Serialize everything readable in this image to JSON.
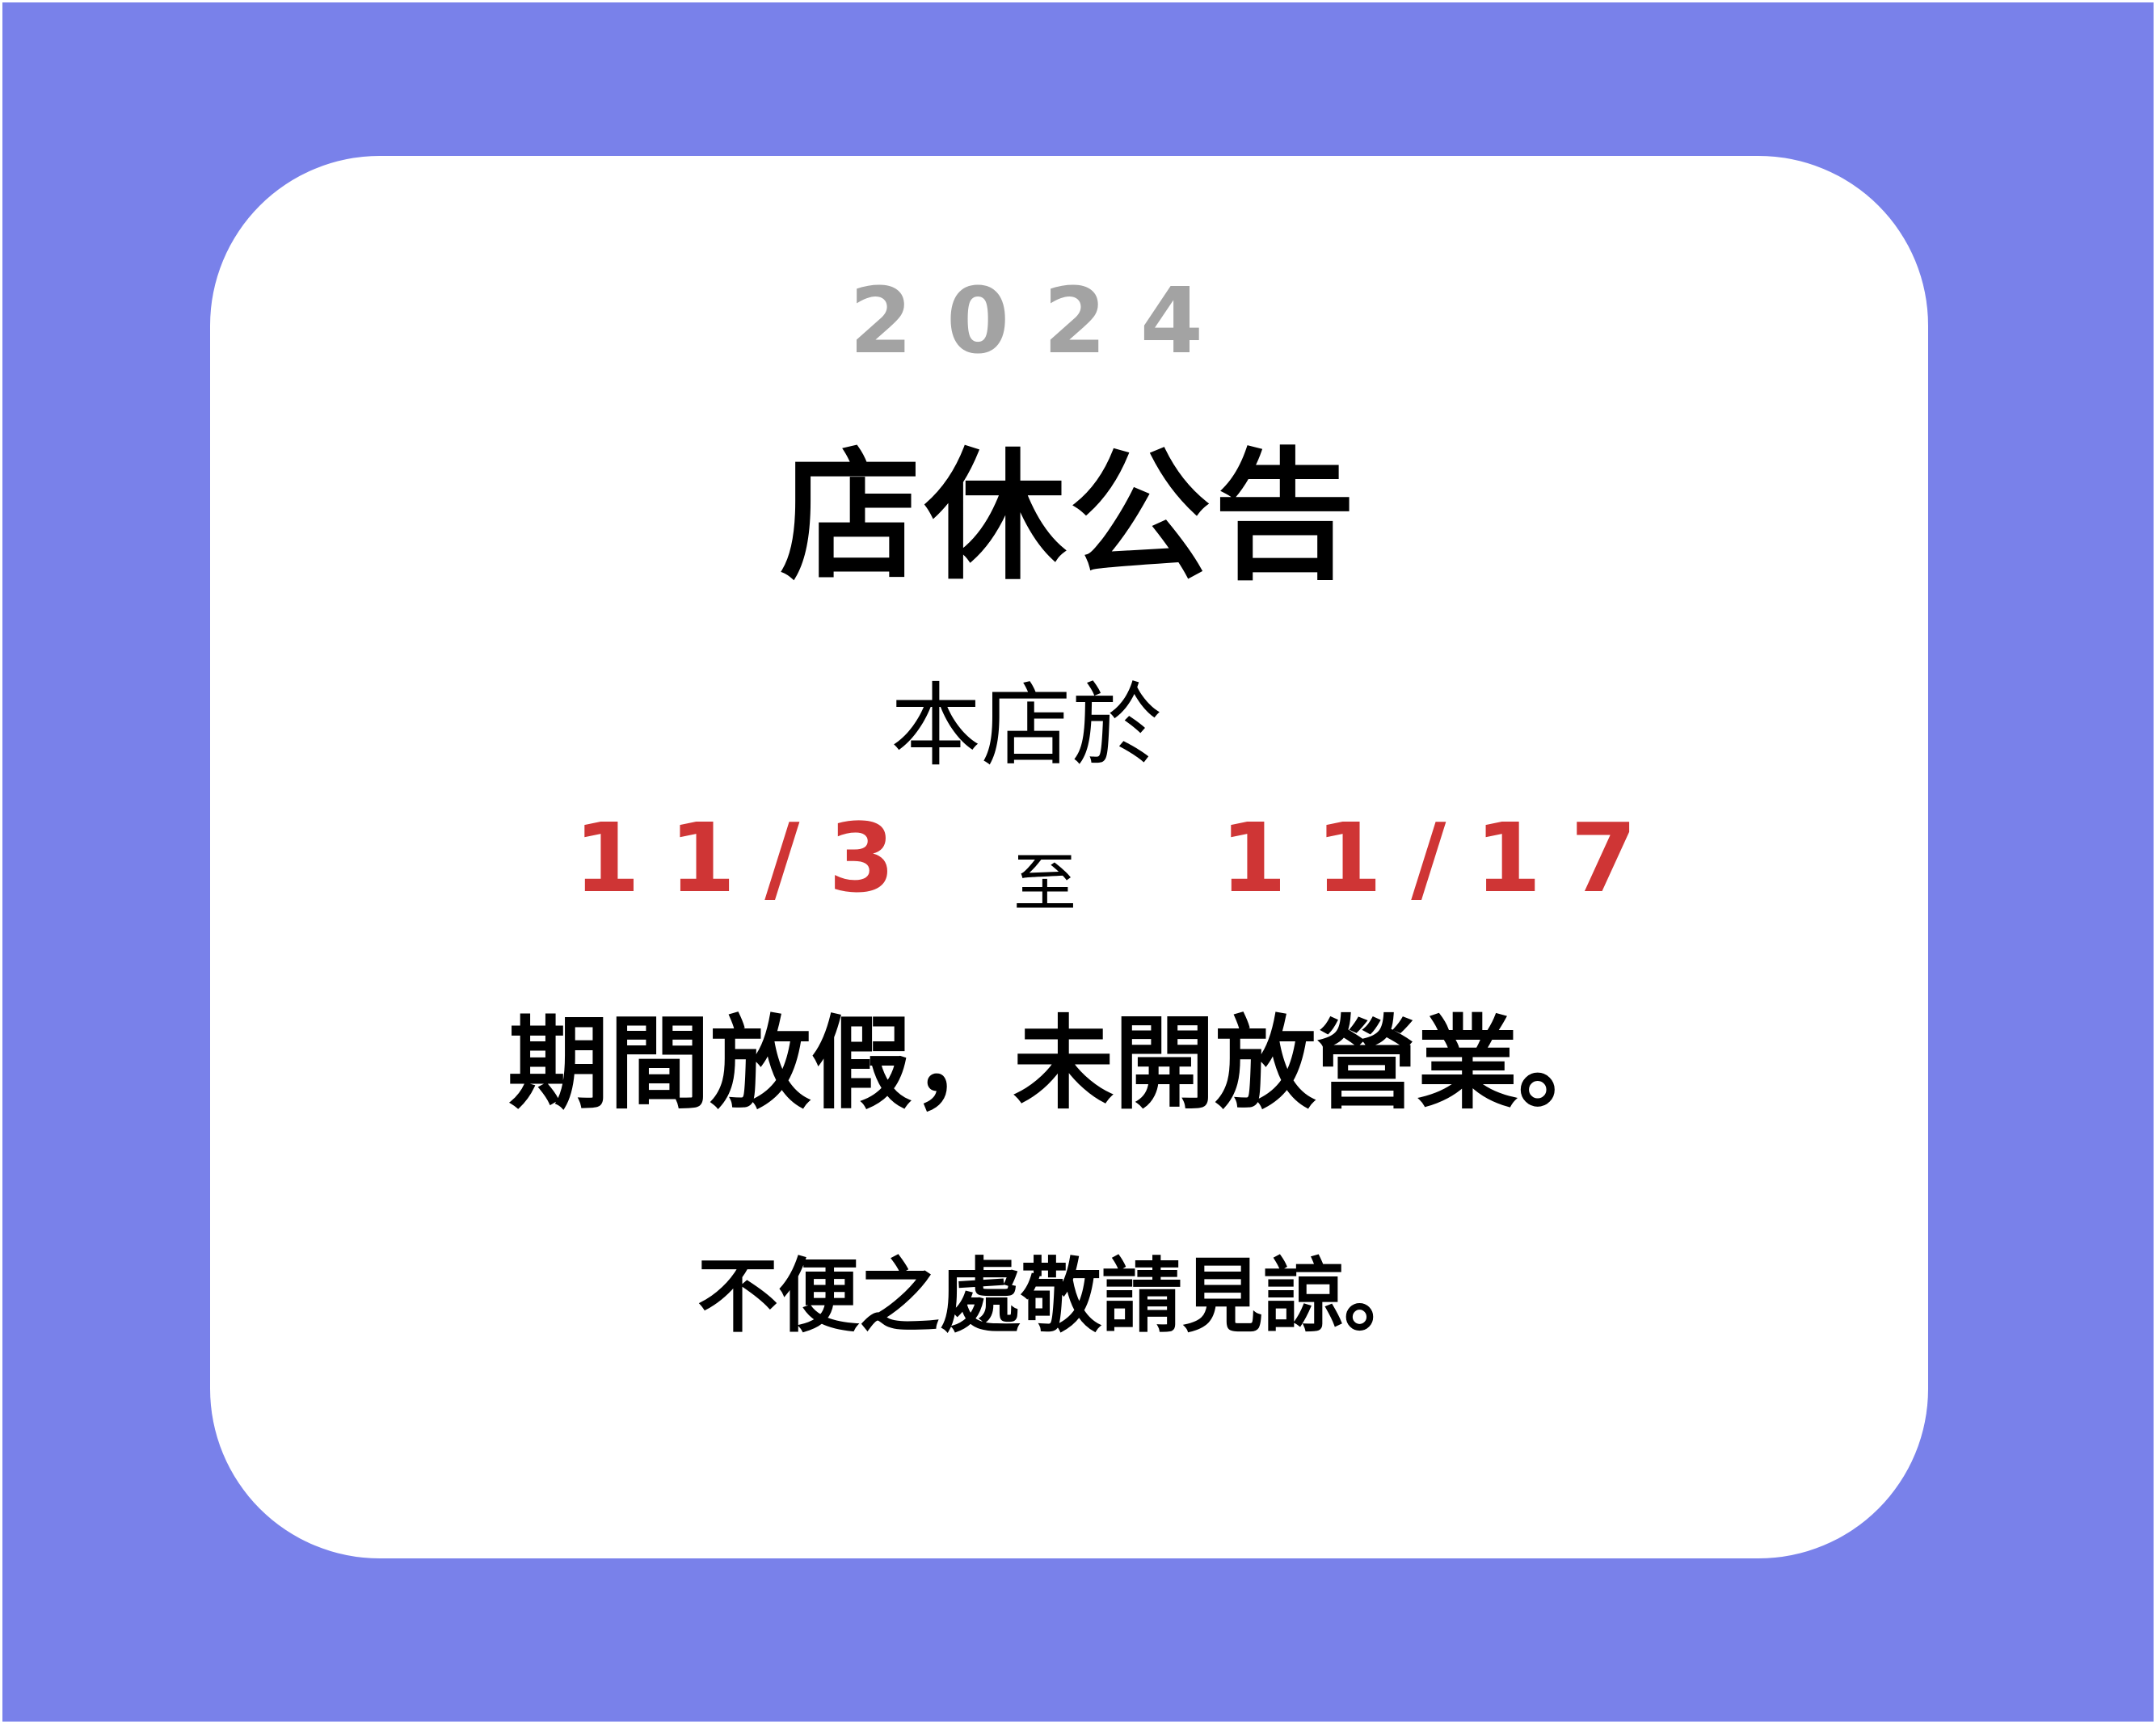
{
  "notice": {
    "year": "2024",
    "title": "店休公告",
    "intro": "本店於",
    "start_date": "11/3",
    "to": "至",
    "end_date": "11/17",
    "closure_text": "期間放假，未開放營業。",
    "apology": "不便之處敬請見諒。"
  },
  "colors": {
    "background": "#7981ea",
    "card": "#ffffff",
    "year": "#a3a3a3",
    "date": "#cf3535",
    "text": "#000000"
  }
}
